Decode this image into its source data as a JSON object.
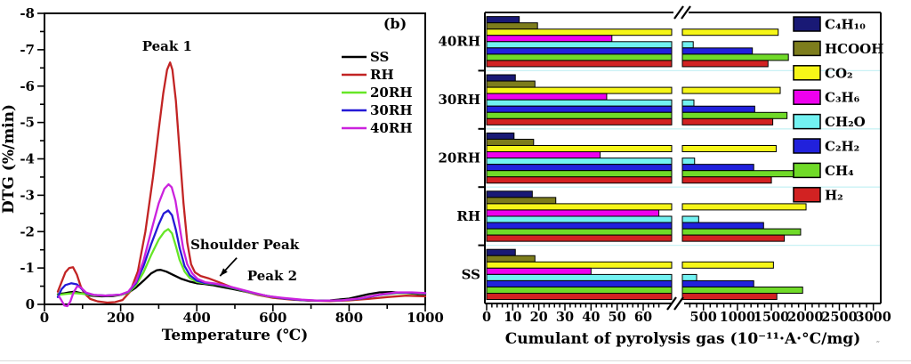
{
  "figure": {
    "background": "#ffffff",
    "stray_mark": "″"
  },
  "chart_data": [
    {
      "type": "line",
      "panel_label": "(b)",
      "xlabel": "Temperature (℃)",
      "ylabel": "DTG (%/min)",
      "xlim": [
        0,
        1000
      ],
      "ylim": [
        -8,
        0
      ],
      "x_major_ticks": [
        0,
        200,
        400,
        600,
        800,
        1000
      ],
      "x_minor_step": 100,
      "y_major_ticks": [
        0,
        -1,
        -2,
        -3,
        -4,
        -5,
        -6,
        -7,
        -8
      ],
      "y_minor_step": 0.5,
      "grid": false,
      "legend_position": "upper right",
      "annotations": [
        {
          "text": "Peak 1",
          "x": 322,
          "y": -6.97
        },
        {
          "text": "Shoulder Peak",
          "x": 526,
          "y": -1.52,
          "arrow_from": {
            "x": 505,
            "y": -1.28
          },
          "arrow_to": {
            "x": 461,
            "y": -0.78
          }
        },
        {
          "text": "Peak 2",
          "x": 598,
          "y": -0.66
        }
      ],
      "series": [
        {
          "name": "SS",
          "color": "#000000",
          "points": [
            [
              35,
              -0.28
            ],
            [
              50,
              -0.3
            ],
            [
              65,
              -0.33
            ],
            [
              80,
              -0.35
            ],
            [
              100,
              -0.3
            ],
            [
              120,
              -0.24
            ],
            [
              150,
              -0.22
            ],
            [
              180,
              -0.23
            ],
            [
              200,
              -0.26
            ],
            [
              220,
              -0.32
            ],
            [
              240,
              -0.46
            ],
            [
              260,
              -0.65
            ],
            [
              280,
              -0.85
            ],
            [
              295,
              -0.94
            ],
            [
              305,
              -0.95
            ],
            [
              320,
              -0.9
            ],
            [
              340,
              -0.8
            ],
            [
              360,
              -0.7
            ],
            [
              380,
              -0.63
            ],
            [
              400,
              -0.58
            ],
            [
              420,
              -0.56
            ],
            [
              440,
              -0.53
            ],
            [
              460,
              -0.49
            ],
            [
              480,
              -0.45
            ],
            [
              500,
              -0.41
            ],
            [
              550,
              -0.3
            ],
            [
              600,
              -0.2
            ],
            [
              650,
              -0.14
            ],
            [
              700,
              -0.1
            ],
            [
              750,
              -0.11
            ],
            [
              800,
              -0.16
            ],
            [
              850,
              -0.28
            ],
            [
              880,
              -0.33
            ],
            [
              910,
              -0.34
            ],
            [
              950,
              -0.31
            ],
            [
              1000,
              -0.27
            ]
          ]
        },
        {
          "name": "RH",
          "color": "#c22424",
          "points": [
            [
              35,
              -0.35
            ],
            [
              45,
              -0.62
            ],
            [
              55,
              -0.88
            ],
            [
              65,
              -1.0
            ],
            [
              75,
              -1.02
            ],
            [
              85,
              -0.82
            ],
            [
              95,
              -0.5
            ],
            [
              105,
              -0.3
            ],
            [
              120,
              -0.15
            ],
            [
              140,
              -0.08
            ],
            [
              165,
              -0.05
            ],
            [
              185,
              -0.06
            ],
            [
              205,
              -0.12
            ],
            [
              225,
              -0.35
            ],
            [
              245,
              -0.9
            ],
            [
              265,
              -2.0
            ],
            [
              285,
              -3.5
            ],
            [
              300,
              -4.8
            ],
            [
              312,
              -5.8
            ],
            [
              322,
              -6.45
            ],
            [
              330,
              -6.65
            ],
            [
              336,
              -6.45
            ],
            [
              345,
              -5.6
            ],
            [
              355,
              -4.2
            ],
            [
              365,
              -2.8
            ],
            [
              375,
              -1.7
            ],
            [
              385,
              -1.1
            ],
            [
              395,
              -0.88
            ],
            [
              410,
              -0.78
            ],
            [
              430,
              -0.72
            ],
            [
              450,
              -0.64
            ],
            [
              470,
              -0.56
            ],
            [
              495,
              -0.46
            ],
            [
              525,
              -0.36
            ],
            [
              560,
              -0.26
            ],
            [
              600,
              -0.18
            ],
            [
              650,
              -0.13
            ],
            [
              700,
              -0.1
            ],
            [
              750,
              -0.09
            ],
            [
              800,
              -0.11
            ],
            [
              850,
              -0.15
            ],
            [
              900,
              -0.2
            ],
            [
              950,
              -0.24
            ],
            [
              1000,
              -0.22
            ]
          ]
        },
        {
          "name": "20RH",
          "color": "#66e626",
          "points": [
            [
              35,
              -0.26
            ],
            [
              60,
              -0.29
            ],
            [
              80,
              -0.31
            ],
            [
              100,
              -0.29
            ],
            [
              130,
              -0.25
            ],
            [
              160,
              -0.24
            ],
            [
              200,
              -0.26
            ],
            [
              220,
              -0.32
            ],
            [
              240,
              -0.52
            ],
            [
              260,
              -0.88
            ],
            [
              280,
              -1.35
            ],
            [
              300,
              -1.78
            ],
            [
              315,
              -2.0
            ],
            [
              325,
              -2.07
            ],
            [
              335,
              -1.95
            ],
            [
              345,
              -1.6
            ],
            [
              355,
              -1.22
            ],
            [
              368,
              -0.9
            ],
            [
              382,
              -0.72
            ],
            [
              400,
              -0.62
            ],
            [
              420,
              -0.58
            ],
            [
              450,
              -0.55
            ],
            [
              475,
              -0.5
            ],
            [
              505,
              -0.42
            ],
            [
              545,
              -0.31
            ],
            [
              585,
              -0.22
            ],
            [
              625,
              -0.17
            ],
            [
              675,
              -0.12
            ],
            [
              725,
              -0.1
            ],
            [
              780,
              -0.11
            ],
            [
              830,
              -0.16
            ],
            [
              880,
              -0.26
            ],
            [
              925,
              -0.31
            ],
            [
              965,
              -0.31
            ],
            [
              1000,
              -0.29
            ]
          ]
        },
        {
          "name": "30RH",
          "color": "#2419d6",
          "points": [
            [
              35,
              -0.2
            ],
            [
              45,
              -0.42
            ],
            [
              55,
              -0.53
            ],
            [
              70,
              -0.58
            ],
            [
              85,
              -0.55
            ],
            [
              95,
              -0.45
            ],
            [
              110,
              -0.3
            ],
            [
              130,
              -0.26
            ],
            [
              160,
              -0.24
            ],
            [
              200,
              -0.27
            ],
            [
              220,
              -0.34
            ],
            [
              240,
              -0.58
            ],
            [
              260,
              -1.05
            ],
            [
              280,
              -1.65
            ],
            [
              300,
              -2.2
            ],
            [
              313,
              -2.5
            ],
            [
              325,
              -2.58
            ],
            [
              335,
              -2.45
            ],
            [
              345,
              -2.05
            ],
            [
              355,
              -1.55
            ],
            [
              368,
              -1.05
            ],
            [
              382,
              -0.8
            ],
            [
              400,
              -0.65
            ],
            [
              420,
              -0.59
            ],
            [
              450,
              -0.56
            ],
            [
              475,
              -0.51
            ],
            [
              505,
              -0.43
            ],
            [
              545,
              -0.32
            ],
            [
              585,
              -0.23
            ],
            [
              625,
              -0.17
            ],
            [
              675,
              -0.12
            ],
            [
              725,
              -0.1
            ],
            [
              780,
              -0.11
            ],
            [
              830,
              -0.16
            ],
            [
              880,
              -0.26
            ],
            [
              925,
              -0.32
            ],
            [
              965,
              -0.32
            ],
            [
              1000,
              -0.3
            ]
          ]
        },
        {
          "name": "40RH",
          "color": "#cb22dd",
          "points": [
            [
              38,
              -0.22
            ],
            [
              45,
              -0.1
            ],
            [
              52,
              0.03
            ],
            [
              60,
              0.05
            ],
            [
              68,
              -0.08
            ],
            [
              76,
              -0.32
            ],
            [
              86,
              -0.5
            ],
            [
              96,
              -0.46
            ],
            [
              110,
              -0.32
            ],
            [
              130,
              -0.26
            ],
            [
              160,
              -0.24
            ],
            [
              200,
              -0.27
            ],
            [
              220,
              -0.35
            ],
            [
              240,
              -0.62
            ],
            [
              260,
              -1.2
            ],
            [
              280,
              -2.0
            ],
            [
              300,
              -2.78
            ],
            [
              315,
              -3.18
            ],
            [
              326,
              -3.3
            ],
            [
              334,
              -3.22
            ],
            [
              344,
              -2.85
            ],
            [
              354,
              -2.2
            ],
            [
              364,
              -1.55
            ],
            [
              375,
              -1.1
            ],
            [
              388,
              -0.85
            ],
            [
              402,
              -0.7
            ],
            [
              422,
              -0.61
            ],
            [
              450,
              -0.57
            ],
            [
              475,
              -0.52
            ],
            [
              505,
              -0.44
            ],
            [
              545,
              -0.33
            ],
            [
              585,
              -0.23
            ],
            [
              625,
              -0.18
            ],
            [
              675,
              -0.13
            ],
            [
              725,
              -0.1
            ],
            [
              780,
              -0.11
            ],
            [
              830,
              -0.17
            ],
            [
              880,
              -0.27
            ],
            [
              925,
              -0.33
            ],
            [
              965,
              -0.33
            ],
            [
              1000,
              -0.31
            ]
          ]
        }
      ]
    },
    {
      "type": "bar",
      "orientation": "horizontal",
      "xlabel": "Cumulant of pyrolysis gas (10⁻¹¹·A·°C/mg)",
      "categories": [
        "40RH",
        "30RH",
        "20RH",
        "RH",
        "SS"
      ],
      "axis_break": {
        "left_max_value": 71,
        "right_min_value": 190
      },
      "x_left_ticks": [
        0,
        10,
        20,
        30,
        40,
        50,
        60
      ],
      "x_left_minor_step": 2,
      "x_left_minor_max": 66,
      "x_right_ticks": [
        500,
        1000,
        1500,
        2000,
        2500,
        3000
      ],
      "x_right_minor_step": 100,
      "x_right_minor_min": 300,
      "grid": "light-cyan group separators",
      "legend_position": "upper right",
      "series": [
        {
          "name": "C₄H₁₀",
          "color": "#191975",
          "values": [
            12.5,
            11,
            10.5,
            17.5,
            11
          ]
        },
        {
          "name": "HCOOH",
          "color": "#7d7d1c",
          "values": [
            19.5,
            18.5,
            18,
            26.5,
            18.5
          ]
        },
        {
          "name": "CO₂",
          "color": "#f6f618",
          "values": [
            1600,
            1630,
            1570,
            2010,
            1530
          ]
        },
        {
          "name": "C₃H₆",
          "color": "#ee00ee",
          "values": [
            48,
            46,
            43.5,
            66,
            40
          ]
        },
        {
          "name": "CH₂O",
          "color": "#72f2f2",
          "values": [
            350,
            360,
            370,
            430,
            400
          ]
        },
        {
          "name": "C₂H₂",
          "color": "#2121dc",
          "values": [
            1220,
            1255,
            1240,
            1385,
            1240
          ]
        },
        {
          "name": "CH₄",
          "color": "#70da28",
          "values": [
            1750,
            1730,
            1830,
            1930,
            1960
          ]
        },
        {
          "name": "H₂",
          "color": "#d22222",
          "values": [
            1450,
            1520,
            1500,
            1690,
            1580
          ]
        }
      ]
    }
  ]
}
